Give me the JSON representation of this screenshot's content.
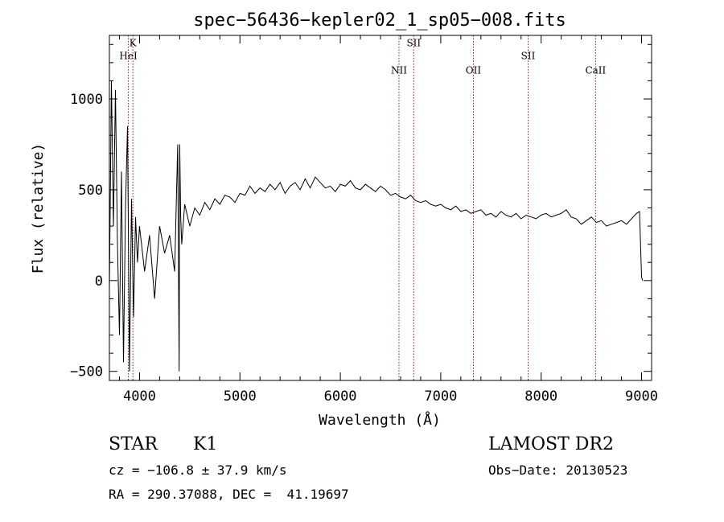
{
  "chart_data": {
    "type": "line",
    "title": "spec−56436−kepler02_1_sp05−008.fits",
    "xlabel": "Wavelength (Å)",
    "ylabel": "Flux (relative)",
    "xlim": [
      3700,
      9100
    ],
    "ylim": [
      -550,
      1350
    ],
    "xticks": [
      4000,
      5000,
      6000,
      7000,
      8000,
      9000
    ],
    "yticks": [
      -500,
      0,
      500,
      1000
    ],
    "xtick_labels": [
      "4000",
      "5000",
      "6000",
      "7000",
      "8000",
      "9000"
    ],
    "ytick_labels": [
      "−500",
      "0",
      "500",
      "1000"
    ],
    "grid": false,
    "line_color": "#000000",
    "marker_color": "#8b1a1a",
    "spectral_lines": [
      {
        "label": "K",
        "wavelength": 3934,
        "label_y": 1290
      },
      {
        "label": "HeI",
        "wavelength": 3889,
        "label_y": 1220
      },
      {
        "label": "NII",
        "wavelength": 6584,
        "label_y": 1140
      },
      {
        "label": "SII",
        "wavelength": 6731,
        "label_y": 1290
      },
      {
        "label": "OII",
        "wavelength": 7325,
        "label_y": 1140
      },
      {
        "label": "SII",
        "wavelength": 7870,
        "label_y": 1220
      },
      {
        "label": "CaII",
        "wavelength": 8542,
        "label_y": 1140
      }
    ],
    "series": [
      {
        "x": [
          3700,
          3720,
          3740,
          3760,
          3780,
          3800,
          3820,
          3840,
          3860,
          3880,
          3900,
          3920,
          3940,
          3960,
          3980,
          4000,
          4050,
          4100,
          4150,
          4200,
          4250,
          4300,
          4350,
          4380,
          4395,
          4400,
          4410,
          4420,
          4450,
          4500,
          4550,
          4600,
          4650,
          4700,
          4750,
          4800,
          4850,
          4900,
          4950,
          5000,
          5050,
          5100,
          5150,
          5200,
          5250,
          5300,
          5350,
          5400,
          5450,
          5500,
          5550,
          5600,
          5650,
          5700,
          5750,
          5800,
          5850,
          5900,
          5950,
          6000,
          6050,
          6100,
          6150,
          6200,
          6250,
          6300,
          6350,
          6400,
          6450,
          6500,
          6550,
          6600,
          6650,
          6700,
          6750,
          6800,
          6850,
          6900,
          6950,
          7000,
          7050,
          7100,
          7150,
          7200,
          7250,
          7300,
          7350,
          7400,
          7450,
          7500,
          7550,
          7600,
          7650,
          7700,
          7750,
          7800,
          7850,
          7900,
          7950,
          8000,
          8050,
          8100,
          8150,
          8200,
          8250,
          8300,
          8350,
          8400,
          8450,
          8500,
          8550,
          8600,
          8650,
          8700,
          8750,
          8800,
          8850,
          8900,
          8950,
          8980,
          9000,
          9010
        ],
        "y": [
          -50,
          1100,
          300,
          1050,
          200,
          -300,
          600,
          -450,
          400,
          850,
          -500,
          450,
          -200,
          350,
          100,
          300,
          50,
          250,
          -100,
          300,
          150,
          250,
          50,
          750,
          -500,
          750,
          350,
          200,
          420,
          300,
          400,
          360,
          430,
          390,
          450,
          420,
          470,
          460,
          430,
          480,
          470,
          520,
          480,
          510,
          490,
          530,
          500,
          540,
          480,
          520,
          540,
          500,
          560,
          510,
          570,
          540,
          510,
          520,
          490,
          530,
          520,
          550,
          510,
          500,
          530,
          510,
          490,
          520,
          500,
          470,
          480,
          460,
          450,
          470,
          440,
          430,
          440,
          420,
          410,
          420,
          400,
          390,
          410,
          380,
          390,
          370,
          380,
          390,
          360,
          370,
          350,
          380,
          360,
          350,
          370,
          340,
          360,
          350,
          340,
          360,
          370,
          350,
          360,
          370,
          390,
          350,
          340,
          310,
          330,
          350,
          320,
          330,
          300,
          310,
          320,
          330,
          310,
          340,
          370,
          380,
          20,
          0
        ]
      }
    ]
  },
  "footer": {
    "object_type": "STAR",
    "subclass": "K1",
    "survey": "LAMOST DR2",
    "redshift": "cz = −106.8 ± 37.9 km/s",
    "obs_date": "Obs−Date: 20130523",
    "coords": "RA = 290.37088, DEC =  41.19697"
  }
}
